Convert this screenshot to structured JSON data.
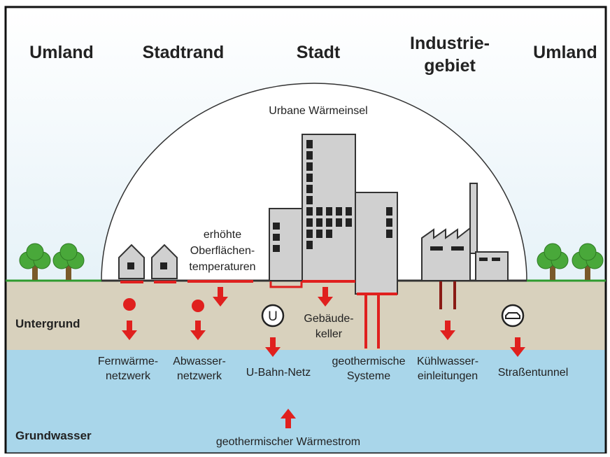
{
  "regions": [
    "Umland",
    "Stadtrand",
    "Stadt",
    [
      "Industrie-",
      "gebiet"
    ],
    "Umland"
  ],
  "dome_label": "Urbane Wärmeinsel",
  "surface_label": [
    "erhöhte",
    "Oberflächen-",
    "temperaturen"
  ],
  "basement_label": [
    "Gebäude-",
    "keller"
  ],
  "layers": {
    "subsurface": "Untergrund",
    "groundwater": "Grundwasser"
  },
  "sources": [
    [
      "Fernwärme-",
      "netzwerk"
    ],
    [
      "Abwasser-",
      "netzwerk"
    ],
    [
      "U-Bahn-Netz"
    ],
    [
      "geothermische",
      "Systeme"
    ],
    [
      "Kühlwasser-",
      "einleitungen"
    ],
    [
      "Straßentunnel"
    ]
  ],
  "heat_flow": "geothermischer Wärmestrom",
  "u_icon": "U"
}
